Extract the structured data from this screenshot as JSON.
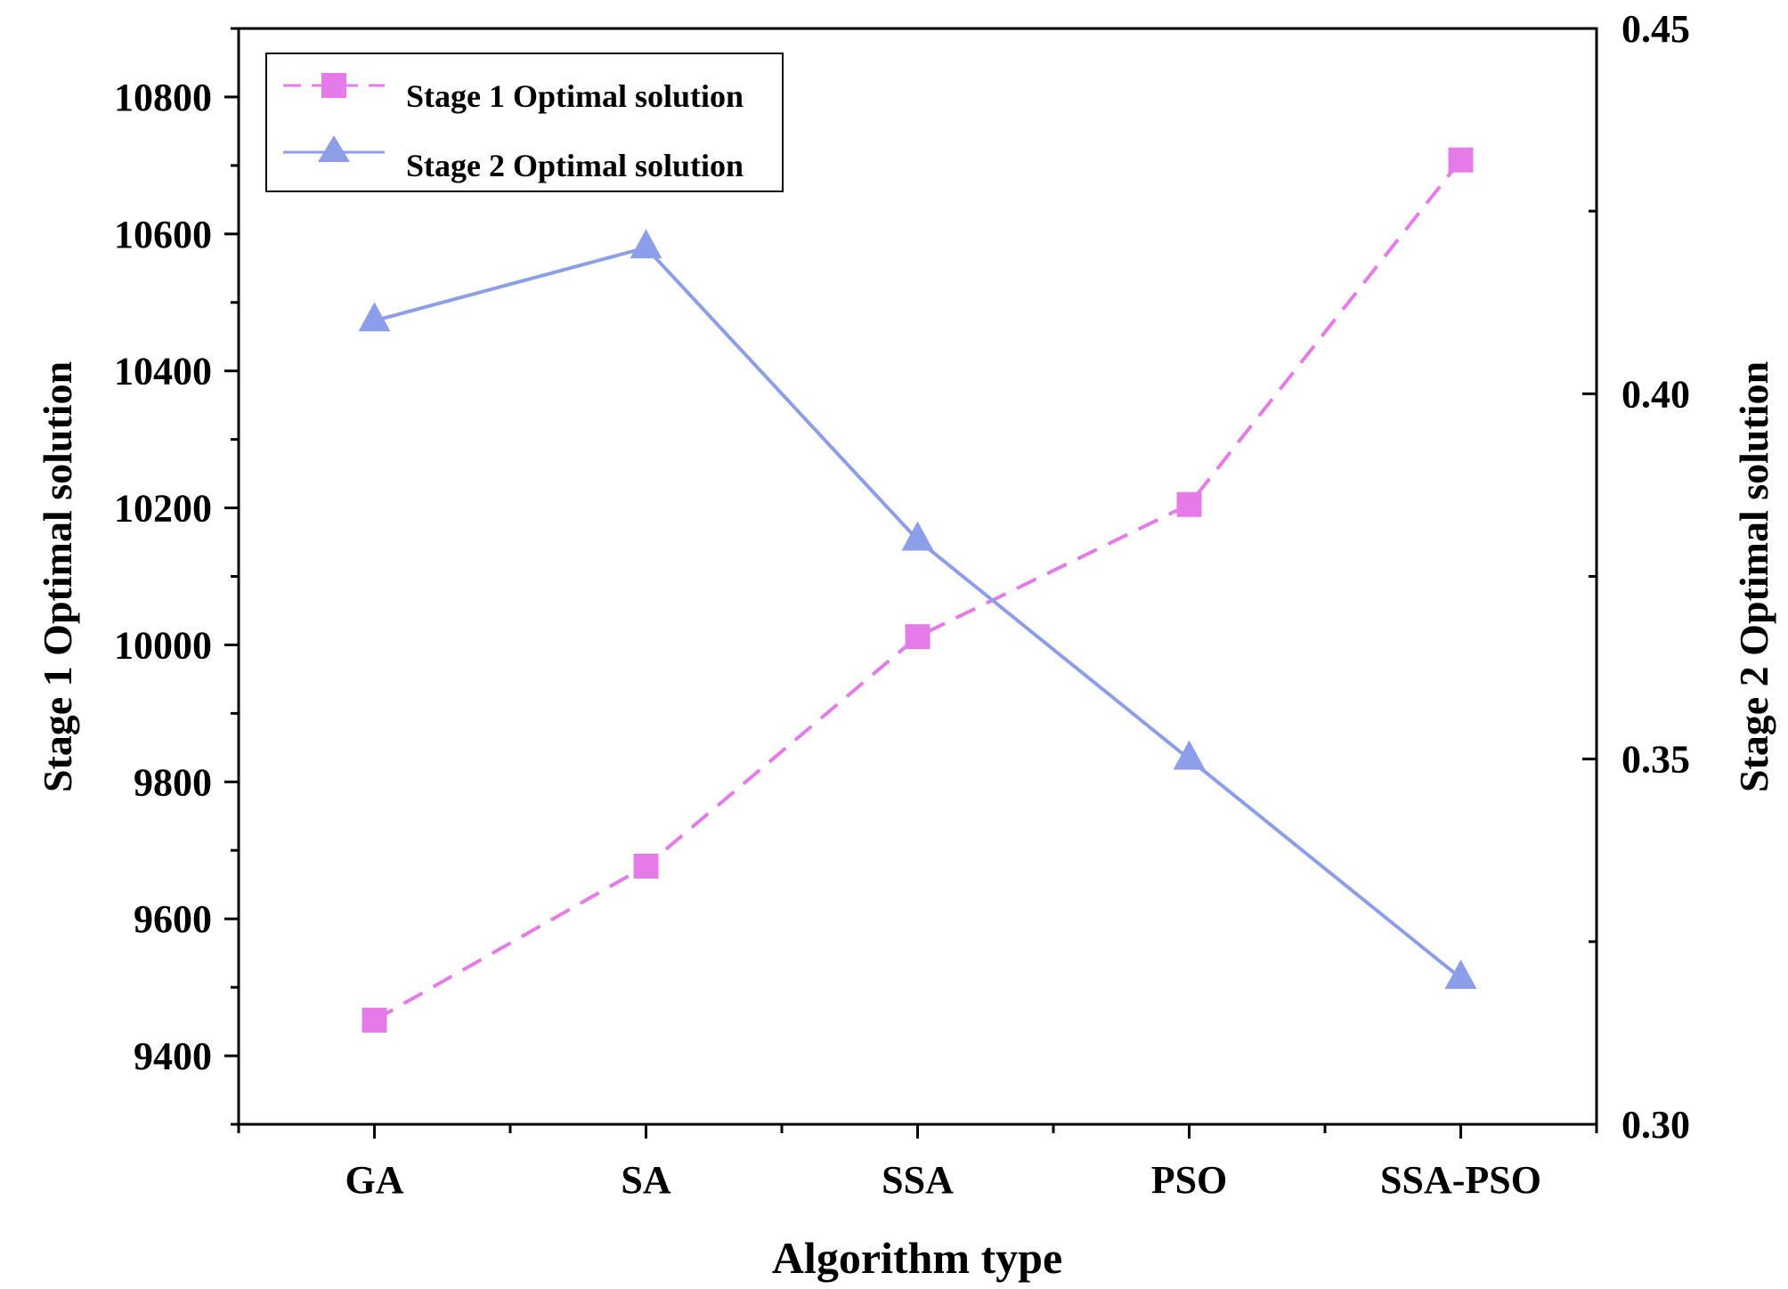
{
  "chart_data": {
    "type": "line",
    "categories": [
      "GA",
      "SA",
      "SSA",
      "PSO",
      "SSA-PSO"
    ],
    "xlabel": "Algorithm type",
    "ylabel_left": "Stage 1 Optimal solution",
    "ylabel_right": "Stage 2 Optimal solution",
    "ylim_left": [
      9300,
      10900
    ],
    "ylim_right": [
      0.3,
      0.45
    ],
    "yticks_left": [
      9400,
      9600,
      9800,
      10000,
      10200,
      10400,
      10600,
      10800
    ],
    "yticks_right": [
      "0.30",
      "0.35",
      "0.40",
      "0.45"
    ],
    "legend_position": "top-left",
    "series": [
      {
        "name": "Stage 1 Optimal solution",
        "axis": "left",
        "marker": "square",
        "line_style": "dashed",
        "color": "#e47be8",
        "values": [
          9452,
          9677,
          10012,
          10205,
          10708
        ]
      },
      {
        "name": "Stage 2 Optimal solution",
        "axis": "right",
        "marker": "triangle",
        "line_style": "solid",
        "color": "#8c9ee8",
        "values": [
          0.41,
          0.42,
          0.38,
          0.35,
          0.32
        ]
      }
    ]
  }
}
